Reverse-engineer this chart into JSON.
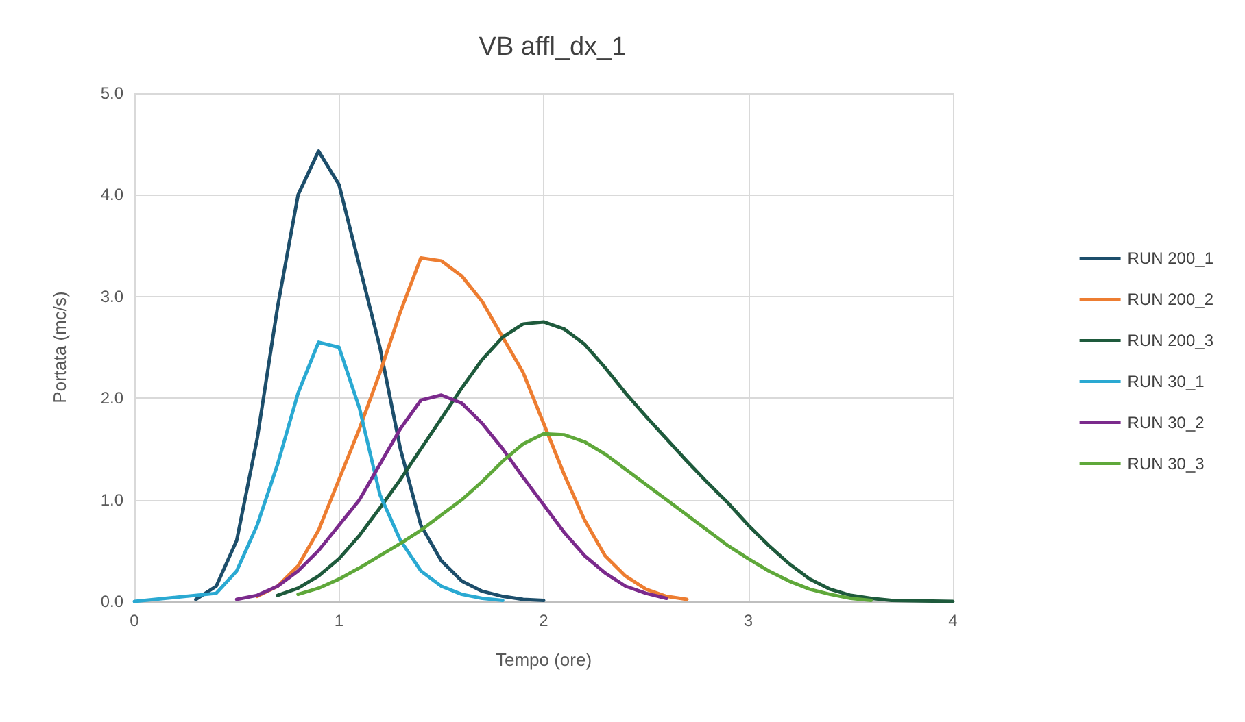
{
  "chart_data": {
    "type": "line",
    "title": "VB affl_dx_1",
    "xlabel": "Tempo (ore)",
    "ylabel": "Portata (mc/s)",
    "series": [
      {
        "name": "RUN 200_1",
        "color": "#1d4e6b",
        "x": [
          0.3,
          0.4,
          0.5,
          0.6,
          0.7,
          0.8,
          0.9,
          1.0,
          1.1,
          1.2,
          1.3,
          1.4,
          1.5,
          1.6,
          1.7,
          1.8,
          1.9,
          2.0
        ],
        "values": [
          0.02,
          0.15,
          0.6,
          1.6,
          2.9,
          4.0,
          4.43,
          4.1,
          3.3,
          2.5,
          1.5,
          0.75,
          0.4,
          0.2,
          0.1,
          0.05,
          0.02,
          0.01
        ]
      },
      {
        "name": "RUN 200_2",
        "color": "#ed7d31",
        "x": [
          0.6,
          0.7,
          0.8,
          0.9,
          1.0,
          1.1,
          1.2,
          1.3,
          1.4,
          1.5,
          1.6,
          1.7,
          1.8,
          1.9,
          2.0,
          2.1,
          2.2,
          2.3,
          2.4,
          2.5,
          2.6,
          2.7
        ],
        "values": [
          0.05,
          0.15,
          0.35,
          0.7,
          1.2,
          1.7,
          2.25,
          2.85,
          3.38,
          3.35,
          3.2,
          2.95,
          2.6,
          2.25,
          1.75,
          1.25,
          0.8,
          0.45,
          0.25,
          0.12,
          0.05,
          0.02
        ]
      },
      {
        "name": "RUN 200_3",
        "color": "#1e5a3c",
        "x": [
          0.7,
          0.8,
          0.9,
          1.0,
          1.1,
          1.2,
          1.3,
          1.4,
          1.5,
          1.6,
          1.7,
          1.8,
          1.9,
          2.0,
          2.1,
          2.2,
          2.3,
          2.4,
          2.5,
          2.6,
          2.7,
          2.8,
          2.9,
          3.0,
          3.1,
          3.2,
          3.3,
          3.4,
          3.5,
          3.6,
          3.7,
          4.0
        ],
        "values": [
          0.06,
          0.13,
          0.25,
          0.42,
          0.65,
          0.92,
          1.2,
          1.5,
          1.8,
          2.1,
          2.38,
          2.6,
          2.73,
          2.75,
          2.68,
          2.53,
          2.3,
          2.05,
          1.82,
          1.6,
          1.38,
          1.17,
          0.97,
          0.75,
          0.55,
          0.37,
          0.22,
          0.12,
          0.06,
          0.03,
          0.01,
          0
        ]
      },
      {
        "name": "RUN 30_1",
        "color": "#2aa9d2",
        "x": [
          0,
          0.4,
          0.5,
          0.6,
          0.7,
          0.8,
          0.9,
          1.0,
          1.1,
          1.2,
          1.3,
          1.4,
          1.5,
          1.6,
          1.7,
          1.8
        ],
        "values": [
          0,
          0.08,
          0.3,
          0.75,
          1.35,
          2.05,
          2.55,
          2.5,
          1.9,
          1.05,
          0.6,
          0.3,
          0.15,
          0.07,
          0.03,
          0.01
        ]
      },
      {
        "name": "RUN 30_2",
        "color": "#7b2a8c",
        "x": [
          0.5,
          0.6,
          0.7,
          0.8,
          0.9,
          1.0,
          1.1,
          1.2,
          1.3,
          1.4,
          1.5,
          1.6,
          1.7,
          1.8,
          1.9,
          2.0,
          2.1,
          2.2,
          2.3,
          2.4,
          2.5,
          2.6
        ],
        "values": [
          0.02,
          0.06,
          0.15,
          0.3,
          0.5,
          0.75,
          1.0,
          1.35,
          1.7,
          1.98,
          2.03,
          1.95,
          1.75,
          1.5,
          1.22,
          0.95,
          0.68,
          0.45,
          0.28,
          0.15,
          0.08,
          0.03
        ]
      },
      {
        "name": "RUN 30_3",
        "color": "#5fa83a",
        "x": [
          0.8,
          0.9,
          1.0,
          1.1,
          1.2,
          1.3,
          1.4,
          1.5,
          1.6,
          1.7,
          1.8,
          1.9,
          2.0,
          2.1,
          2.2,
          2.3,
          2.4,
          2.5,
          2.6,
          2.7,
          2.8,
          2.9,
          3.0,
          3.1,
          3.2,
          3.3,
          3.4,
          3.5,
          3.6
        ],
        "values": [
          0.07,
          0.13,
          0.22,
          0.33,
          0.45,
          0.57,
          0.7,
          0.85,
          1.0,
          1.18,
          1.38,
          1.55,
          1.65,
          1.64,
          1.57,
          1.45,
          1.3,
          1.15,
          1.0,
          0.85,
          0.7,
          0.55,
          0.42,
          0.3,
          0.2,
          0.12,
          0.07,
          0.03,
          0.01
        ]
      }
    ],
    "xlim": [
      0,
      4
    ],
    "xticks": [
      0,
      1,
      2,
      3,
      4
    ],
    "ylim": [
      0,
      5
    ],
    "yticks": [
      {
        "value": 0,
        "label": "0.0"
      },
      {
        "value": 1,
        "label": "1.0"
      },
      {
        "value": 2,
        "label": "2.0"
      },
      {
        "value": 3,
        "label": "3.0"
      },
      {
        "value": 4,
        "label": "4.0"
      },
      {
        "value": 5,
        "label": "5.0"
      }
    ],
    "grid": true,
    "legend": "right",
    "marker": "none",
    "line_style": "solid"
  }
}
